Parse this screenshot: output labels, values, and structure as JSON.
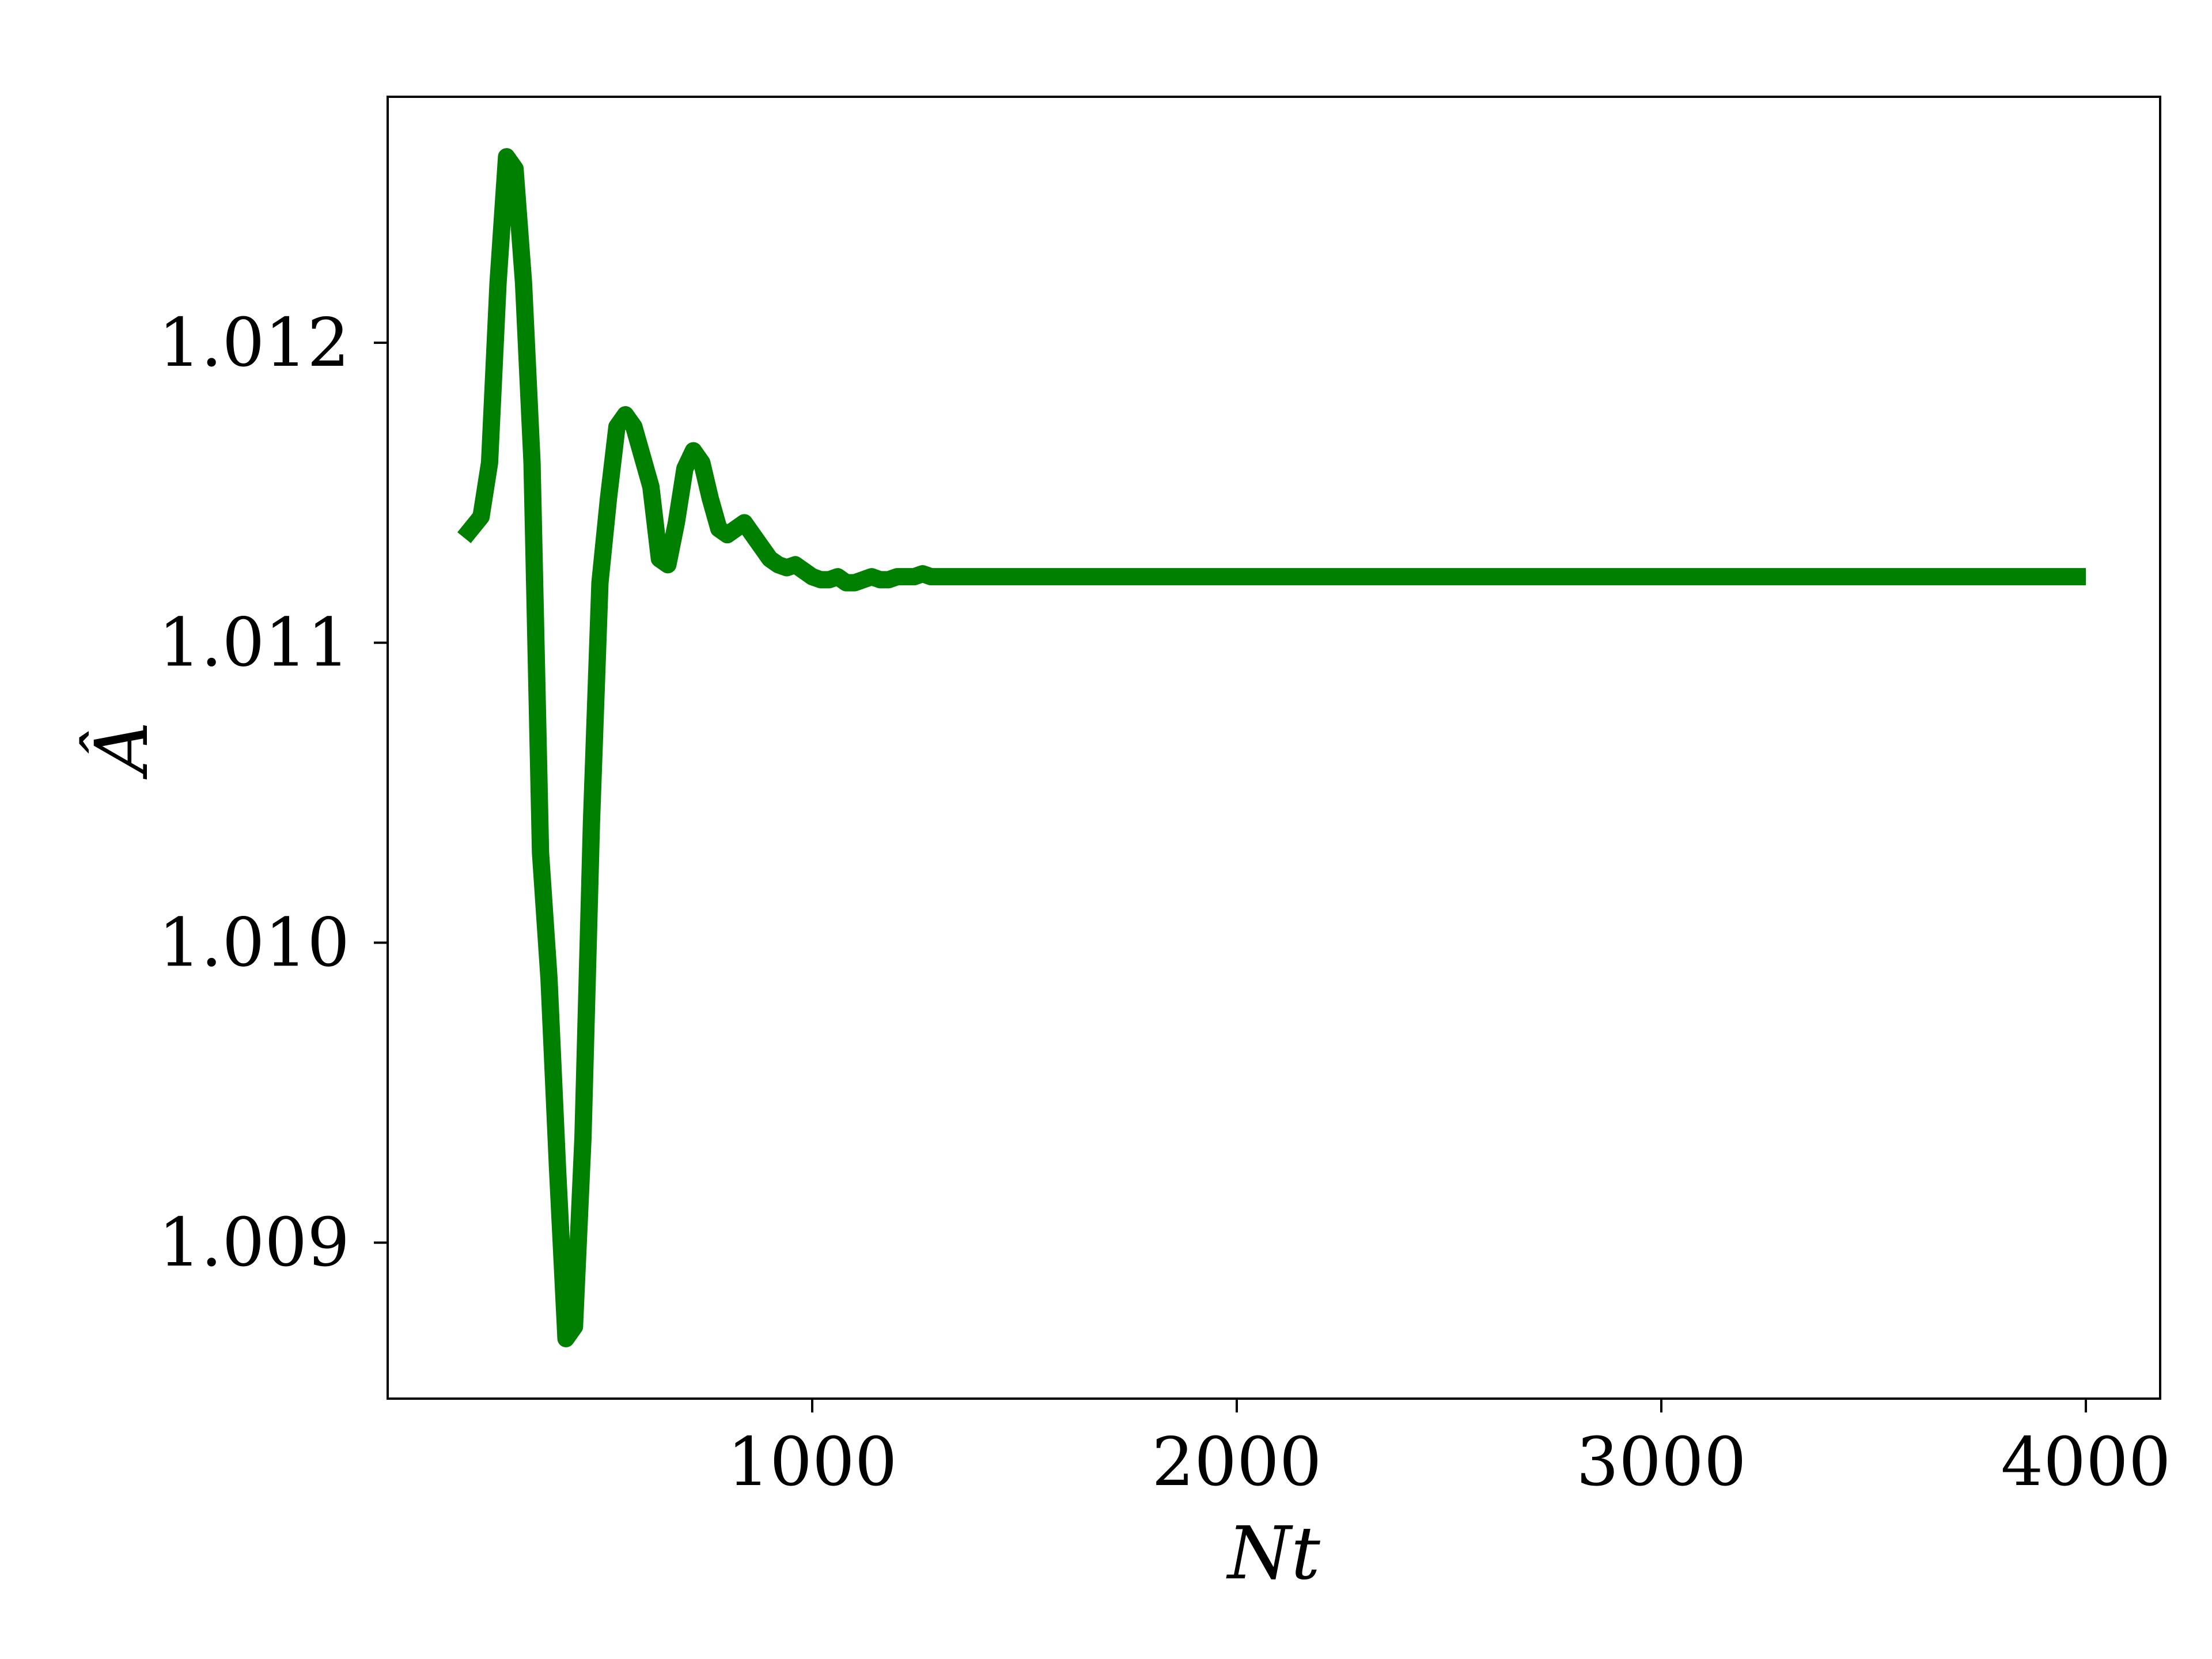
{
  "chart_data": {
    "type": "line",
    "title": "",
    "xlabel": "Nt",
    "ylabel": "Â",
    "xlim": [
      0,
      4175
    ],
    "ylim": [
      1.00848,
      1.01282
    ],
    "xticks": [
      1000,
      2000,
      3000,
      4000
    ],
    "xtick_labels": [
      "1000",
      "2000",
      "3000",
      "4000"
    ],
    "yticks": [
      1.009,
      1.01,
      1.011,
      1.012
    ],
    "ytick_labels": [
      "1.009",
      "1.010",
      "1.011",
      "1.012"
    ],
    "grid": false,
    "line_color": "#008000",
    "series": [
      {
        "x": [
          180,
          220,
          240,
          260,
          280,
          300,
          320,
          340,
          360,
          380,
          400,
          420,
          440,
          460,
          480,
          500,
          520,
          540,
          560,
          580,
          600,
          620,
          640,
          660,
          680,
          700,
          720,
          740,
          760,
          780,
          800,
          820,
          840,
          860,
          880,
          900,
          920,
          940,
          960,
          980,
          1000,
          1020,
          1040,
          1060,
          1080,
          1100,
          1120,
          1140,
          1160,
          1180,
          1200,
          1220,
          1240,
          1260,
          1280,
          1300,
          1350,
          1400,
          1450,
          1500,
          1600,
          1800,
          2000,
          2500,
          3000,
          3500,
          4000
        ],
        "y": [
          1.01135,
          1.01142,
          1.0116,
          1.0122,
          1.01262,
          1.01258,
          1.0122,
          1.0116,
          1.0103,
          1.00988,
          1.00925,
          1.00868,
          1.00872,
          1.00935,
          1.0104,
          1.0112,
          1.01148,
          1.01172,
          1.01176,
          1.01172,
          1.01162,
          1.01152,
          1.01128,
          1.01126,
          1.0114,
          1.01158,
          1.01164,
          1.0116,
          1.01148,
          1.01138,
          1.01136,
          1.01138,
          1.0114,
          1.01136,
          1.01132,
          1.01128,
          1.01126,
          1.01125,
          1.01126,
          1.01124,
          1.01122,
          1.01121,
          1.01121,
          1.01122,
          1.0112,
          1.0112,
          1.01121,
          1.01122,
          1.01121,
          1.01121,
          1.01122,
          1.01122,
          1.01122,
          1.01123,
          1.01122,
          1.01122,
          1.01122,
          1.01122,
          1.01122,
          1.01122,
          1.01122,
          1.01122,
          1.01122,
          1.01122,
          1.01122,
          1.01122,
          1.01122
        ]
      }
    ]
  }
}
